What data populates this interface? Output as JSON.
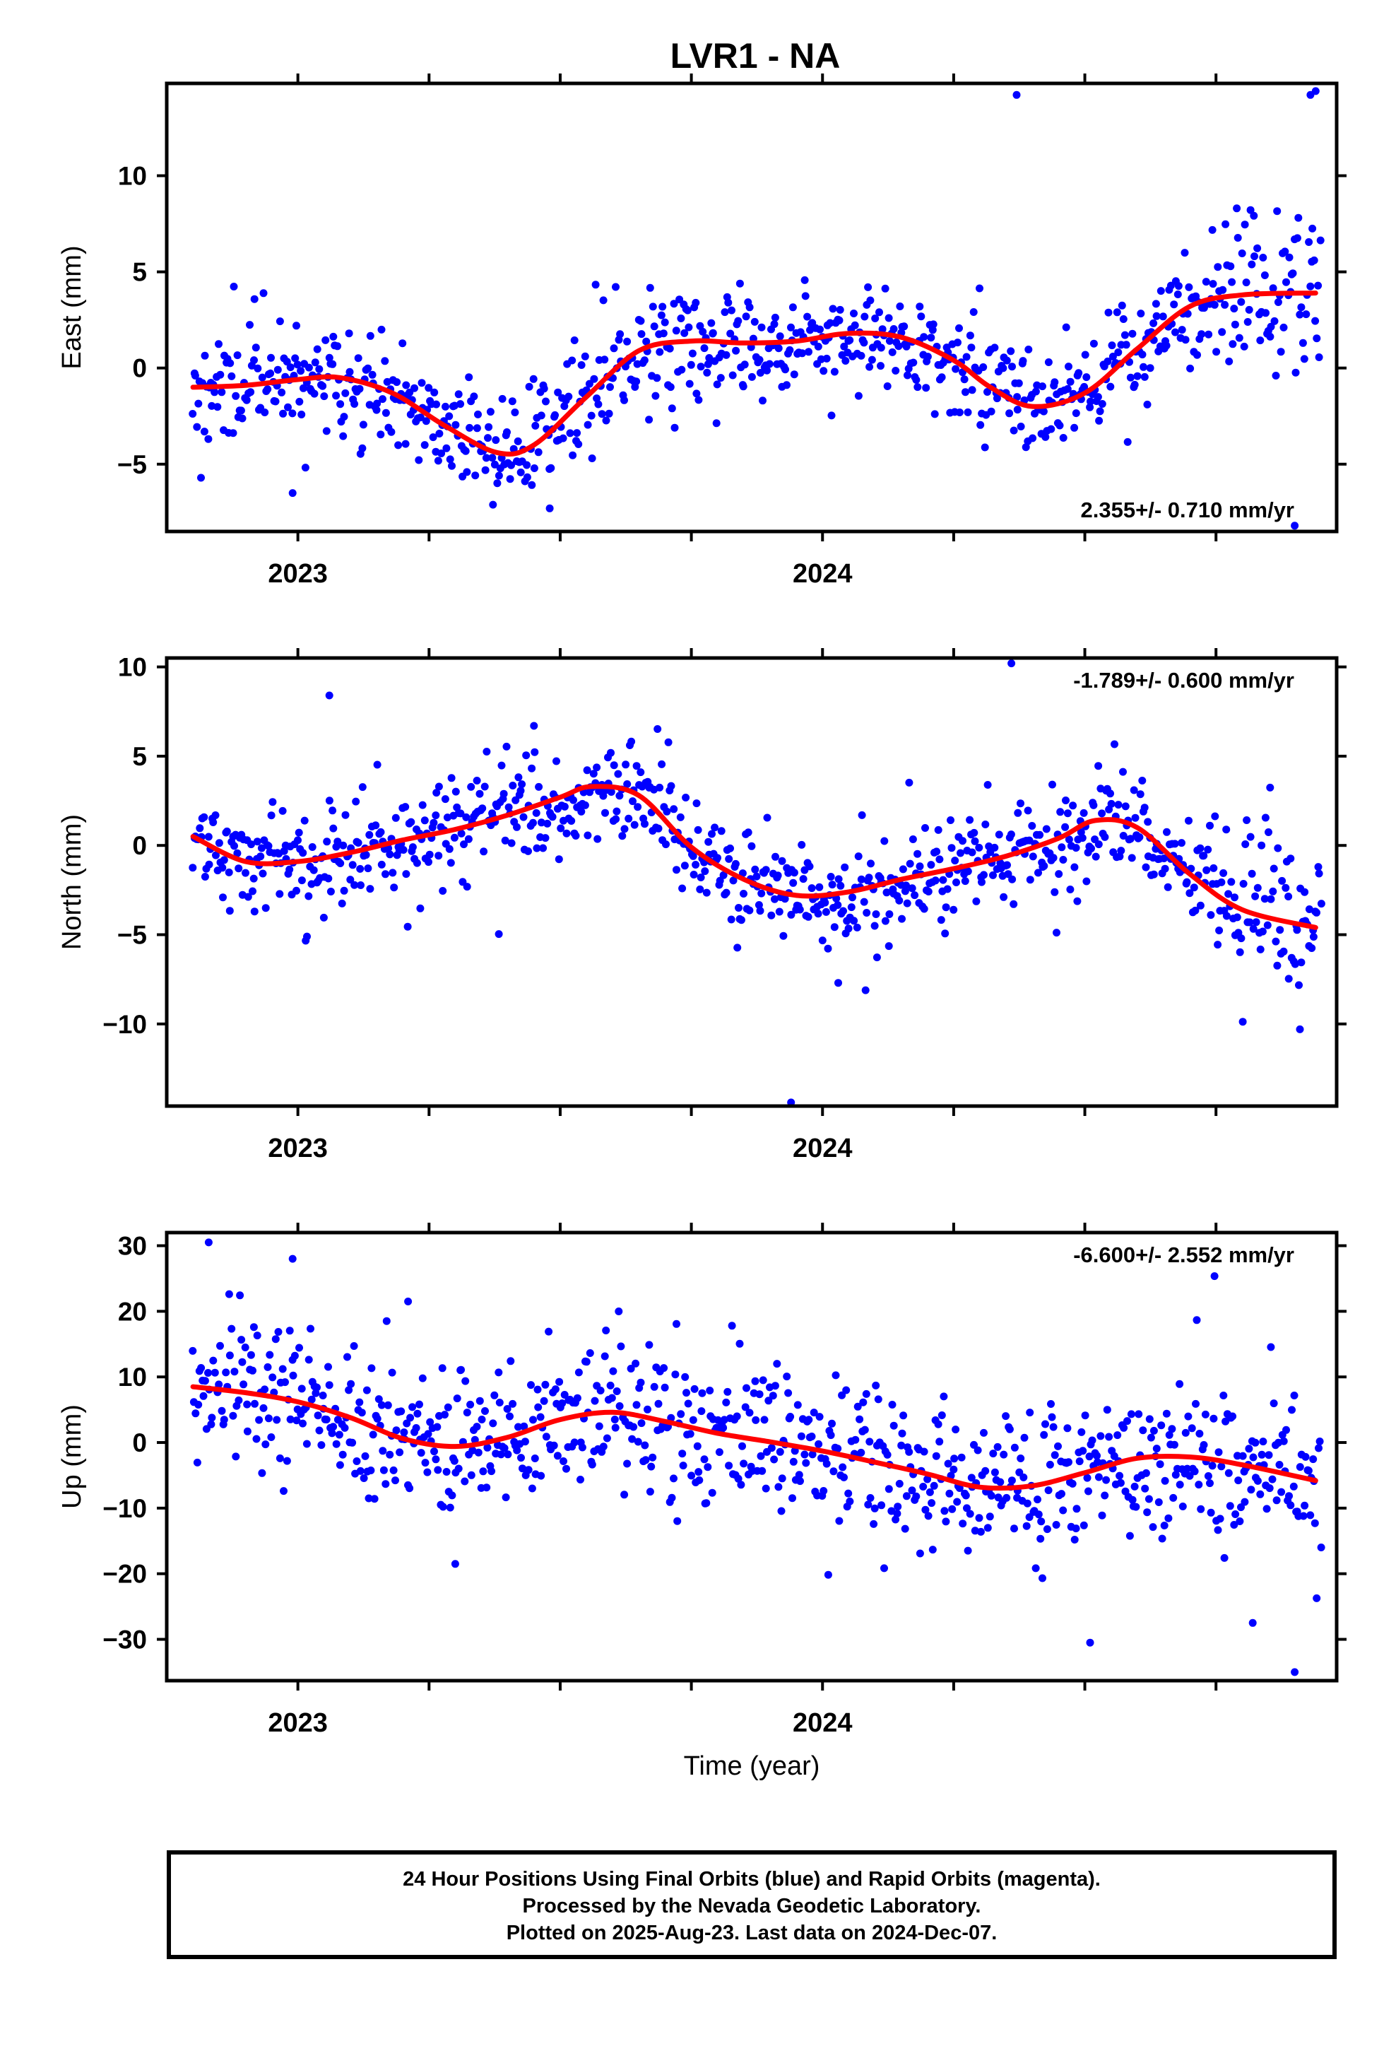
{
  "title": "LVR1 - NA",
  "xlabel": "Time (year)",
  "caption": [
    "24 Hour Positions Using Final Orbits (blue) and Rapid Orbits (magenta).",
    "Processed by the Nevada Geodetic Laboratory.",
    "Plotted on 2025-Aug-23. Last data on 2024-Dec-07."
  ],
  "colors": {
    "points": "#0000ff",
    "fit": "#ff0000",
    "axes": "#000000"
  },
  "chart_data": [
    {
      "type": "scatter",
      "ylabel": "East (mm)",
      "rate_label": "2.355+/- 0.710 mm/yr",
      "rate_position": "bottom-right",
      "xlim": [
        2022.75,
        2024.98
      ],
      "ylim": [
        -8.5,
        14.8
      ],
      "xticks": [
        2023,
        2024
      ],
      "yticks": [
        -5,
        0,
        5,
        10
      ],
      "fit": {
        "x": [
          2022.8,
          2022.9,
          2023.0,
          2023.08,
          2023.18,
          2023.28,
          2023.38,
          2023.45,
          2023.55,
          2023.65,
          2023.75,
          2023.85,
          2023.95,
          2024.05,
          2024.15,
          2024.25,
          2024.32,
          2024.4,
          2024.5,
          2024.6,
          2024.7,
          2024.8,
          2024.94
        ],
        "y": [
          -1.0,
          -0.9,
          -0.6,
          -0.5,
          -1.3,
          -3.0,
          -4.4,
          -4.0,
          -1.5,
          0.9,
          1.4,
          1.3,
          1.4,
          1.8,
          1.6,
          0.4,
          -1.0,
          -2.0,
          -1.3,
          1.0,
          3.2,
          3.8,
          3.9
        ]
      },
      "outliers": [
        {
          "x": 2024.37,
          "y": 14.2
        },
        {
          "x": 2024.93,
          "y": 14.2
        },
        {
          "x": 2024.94,
          "y": 14.4
        },
        {
          "x": 2024.9,
          "y": -8.2
        },
        {
          "x": 2023.48,
          "y": -7.3
        },
        {
          "x": 2022.99,
          "y": -6.5
        }
      ],
      "scatter": {
        "count": 820,
        "seed": 11,
        "x_start": 2022.8,
        "x_end": 2024.95,
        "spread": 1.45,
        "trend": 3.0
      }
    },
    {
      "type": "scatter",
      "ylabel": "North (mm)",
      "rate_label": "-1.789+/- 0.600 mm/yr",
      "rate_position": "top-right",
      "xlim": [
        2022.75,
        2024.98
      ],
      "ylim": [
        -14.6,
        10.5
      ],
      "xticks": [
        2023,
        2024
      ],
      "yticks": [
        -10,
        -5,
        0,
        5,
        10
      ],
      "fit": {
        "x": [
          2022.8,
          2022.9,
          2023.0,
          2023.1,
          2023.2,
          2023.3,
          2023.4,
          2023.5,
          2023.56,
          2023.65,
          2023.75,
          2023.85,
          2023.95,
          2024.05,
          2024.15,
          2024.25,
          2024.35,
          2024.45,
          2024.52,
          2024.6,
          2024.7,
          2024.8,
          2024.94
        ],
        "y": [
          0.5,
          -0.9,
          -0.9,
          -0.4,
          0.3,
          0.9,
          1.7,
          2.7,
          3.3,
          2.8,
          -0.1,
          -1.9,
          -2.8,
          -2.6,
          -1.9,
          -1.3,
          -0.6,
          0.4,
          1.4,
          1.0,
          -1.6,
          -3.6,
          -4.6
        ]
      },
      "outliers": [
        {
          "x": 2024.36,
          "y": 10.2
        },
        {
          "x": 2023.06,
          "y": 8.4
        },
        {
          "x": 2023.45,
          "y": 6.7
        },
        {
          "x": 2023.94,
          "y": -14.4
        },
        {
          "x": 2024.91,
          "y": -10.3
        },
        {
          "x": 2024.03,
          "y": -7.7
        }
      ],
      "scatter": {
        "count": 820,
        "seed": 23,
        "x_start": 2022.8,
        "x_end": 2024.95,
        "spread": 1.35,
        "trend": 3.0
      }
    },
    {
      "type": "scatter",
      "ylabel": "Up (mm)",
      "rate_label": "-6.600+/- 2.552 mm/yr",
      "rate_position": "top-right",
      "xlim": [
        2022.75,
        2024.98
      ],
      "ylim": [
        -36.3,
        32.0
      ],
      "xticks": [
        2023,
        2024
      ],
      "yticks": [
        -30,
        -20,
        -10,
        0,
        10,
        20,
        30
      ],
      "fit": {
        "x": [
          2022.8,
          2022.9,
          2023.0,
          2023.1,
          2023.2,
          2023.3,
          2023.4,
          2023.5,
          2023.6,
          2023.7,
          2023.8,
          2023.9,
          2024.0,
          2024.1,
          2024.2,
          2024.3,
          2024.4,
          2024.5,
          2024.6,
          2024.7,
          2024.8,
          2024.94
        ],
        "y": [
          8.5,
          7.6,
          6.2,
          3.8,
          0.6,
          -0.6,
          0.8,
          3.5,
          4.6,
          3.2,
          1.4,
          0.1,
          -1.3,
          -3.0,
          -4.8,
          -6.8,
          -6.6,
          -4.6,
          -2.4,
          -2.2,
          -3.4,
          -5.8
        ]
      },
      "outliers": [
        {
          "x": 2022.83,
          "y": 30.5
        },
        {
          "x": 2022.99,
          "y": 28.0
        },
        {
          "x": 2023.21,
          "y": 21.5
        },
        {
          "x": 2024.51,
          "y": -30.5
        },
        {
          "x": 2024.9,
          "y": -35.0
        },
        {
          "x": 2024.82,
          "y": -27.5
        },
        {
          "x": 2023.3,
          "y": -18.5
        }
      ],
      "scatter": {
        "count": 820,
        "seed": 37,
        "x_start": 2022.8,
        "x_end": 2024.95,
        "spread": 5.6,
        "trend": 3.4
      }
    }
  ]
}
